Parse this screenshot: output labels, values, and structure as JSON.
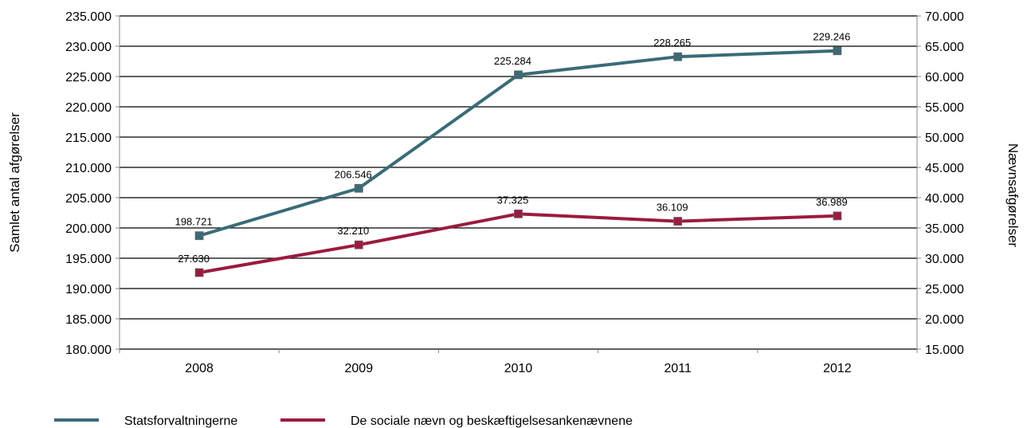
{
  "chart_data": {
    "type": "line",
    "categories": [
      "2008",
      "2009",
      "2010",
      "2011",
      "2012"
    ],
    "ylabel_left": "Samlet antal afgørelser",
    "ylabel_right": "Nævnsafgørelser",
    "ylim_left": [
      180000,
      235000
    ],
    "ylim_right": [
      15000,
      70000
    ],
    "yticks_left": [
      "180.000",
      "185.000",
      "190.000",
      "195.000",
      "200.000",
      "205.000",
      "210.000",
      "215.000",
      "220.000",
      "225.000",
      "230.000",
      "235.000"
    ],
    "yticks_right": [
      "15.000",
      "20.000",
      "25.000",
      "30.000",
      "35.000",
      "40.000",
      "45.000",
      "50.000",
      "55.000",
      "60.000",
      "65.000",
      "70.000"
    ],
    "grid": true,
    "legend_position": "bottom-left",
    "series": [
      {
        "name": "Statsforvaltningerne",
        "axis": "left",
        "color": "#3a6b78",
        "values": [
          198721,
          206546,
          225284,
          228265,
          229246
        ],
        "labels": [
          "198.721",
          "206.546",
          "225.284",
          "228.265",
          "229.246"
        ]
      },
      {
        "name": "De sociale nævn og beskæftigelsesankenævnene",
        "axis": "right",
        "color": "#9b1b3f",
        "values": [
          27630,
          32210,
          37325,
          36109,
          36989
        ],
        "labels": [
          "27.630",
          "32.210",
          "37.325",
          "36.109",
          "36.989"
        ]
      }
    ]
  }
}
